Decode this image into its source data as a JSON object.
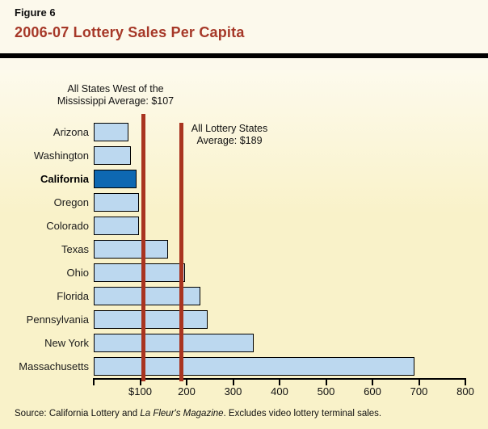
{
  "header": {
    "figure_label": "Figure 6",
    "title": "2006-07 Lottery Sales Per Capita"
  },
  "chart_data": {
    "type": "bar",
    "orientation": "horizontal",
    "title": "2006-07 Lottery Sales Per Capita",
    "categories": [
      "Arizona",
      "Washington",
      "California",
      "Oregon",
      "Colorado",
      "Texas",
      "Ohio",
      "Florida",
      "Pennsylvania",
      "New York",
      "Massachusetts"
    ],
    "values": [
      75,
      80,
      92,
      97,
      97,
      160,
      197,
      230,
      245,
      345,
      690
    ],
    "unit": "dollars per capita",
    "highlight_category": "California",
    "xlim": [
      0,
      800
    ],
    "x_ticks": [
      100,
      200,
      300,
      400,
      500,
      600,
      700,
      800
    ],
    "x_tick_labels": [
      "$100",
      "200",
      "300",
      "400",
      "500",
      "600",
      "700",
      "800"
    ],
    "grid": false,
    "reference_lines": [
      {
        "value": 107,
        "label_lines": [
          "All States West of the",
          "Mississippi Average: $107"
        ]
      },
      {
        "value": 189,
        "label_lines": [
          "All Lottery States",
          "Average: $189"
        ]
      }
    ]
  },
  "colors": {
    "bar_fill": "#BCD8EF",
    "highlight_fill": "#0E68B2",
    "reference_line": "#A93420",
    "title": "#A63828",
    "rule": "#000000",
    "background": "#FCF9EC",
    "panel": "#F9F2C9"
  },
  "source": {
    "prefix": "Source: California Lottery and ",
    "italic": "La Fleur's Magazine",
    "suffix": ". Excludes video lottery terminal sales."
  }
}
